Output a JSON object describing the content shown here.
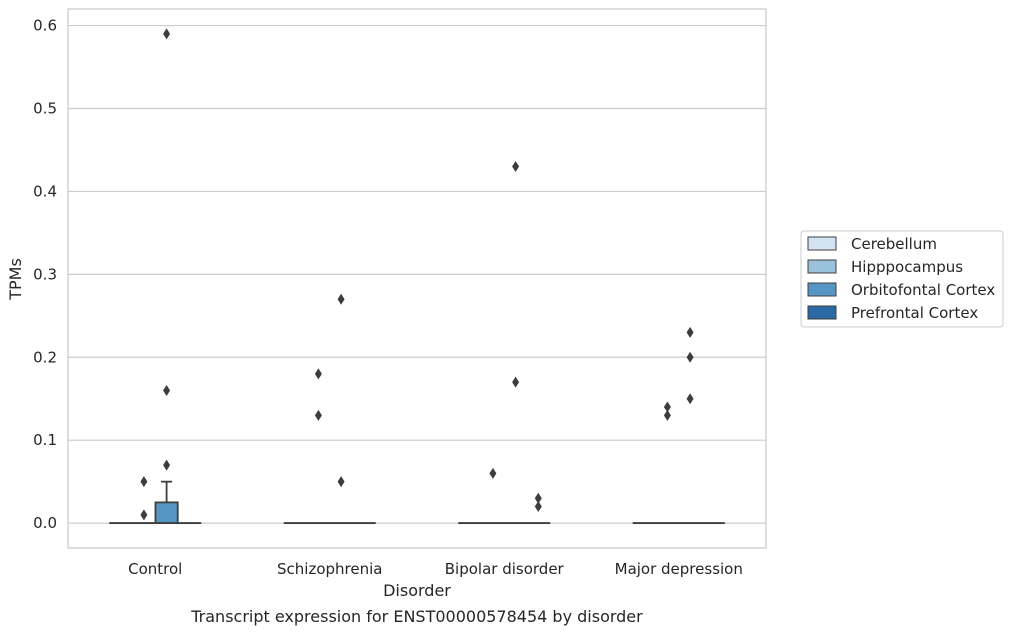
{
  "chart_data": {
    "type": "box",
    "title": "Transcript expression for ENST00000578454 by disorder",
    "xlabel": "Disorder",
    "ylabel": "TPMs",
    "ylim": [
      -0.03,
      0.62
    ],
    "yticks": [
      0.0,
      0.1,
      0.2,
      0.3,
      0.4,
      0.5,
      0.6
    ],
    "ytick_labels": [
      "0.0",
      "0.1",
      "0.2",
      "0.3",
      "0.4",
      "0.5",
      "0.6"
    ],
    "categories": [
      "Control",
      "Schizophrenia",
      "Bipolar disorder",
      "Major depression"
    ],
    "grid": "horizontal",
    "legend_position": "right",
    "series": [
      {
        "name": "Cerebellum",
        "color": "#d4e3f2",
        "boxes": [
          {
            "q1": 0,
            "median": 0,
            "q3": 0,
            "whisker_low": 0,
            "whisker_high": 0,
            "outliers": []
          },
          {
            "q1": 0,
            "median": 0,
            "q3": 0,
            "whisker_low": 0,
            "whisker_high": 0,
            "outliers": []
          },
          {
            "q1": 0,
            "median": 0,
            "q3": 0,
            "whisker_low": 0,
            "whisker_high": 0,
            "outliers": []
          },
          {
            "q1": 0,
            "median": 0,
            "q3": 0,
            "whisker_low": 0,
            "whisker_high": 0,
            "outliers": []
          }
        ]
      },
      {
        "name": "Hipppocampus",
        "color": "#9ac2dd",
        "boxes": [
          {
            "q1": 0,
            "median": 0,
            "q3": 0,
            "whisker_low": 0,
            "whisker_high": 0,
            "outliers": [
              0.01,
              0.05
            ]
          },
          {
            "q1": 0,
            "median": 0,
            "q3": 0,
            "whisker_low": 0,
            "whisker_high": 0,
            "outliers": [
              0.13,
              0.18
            ]
          },
          {
            "q1": 0,
            "median": 0,
            "q3": 0,
            "whisker_low": 0,
            "whisker_high": 0,
            "outliers": [
              0.06
            ]
          },
          {
            "q1": 0,
            "median": 0,
            "q3": 0,
            "whisker_low": 0,
            "whisker_high": 0,
            "outliers": [
              0.13,
              0.14
            ]
          }
        ]
      },
      {
        "name": "Orbitofontal Cortex",
        "color": "#5696c4",
        "boxes": [
          {
            "q1": 0,
            "median": 0,
            "q3": 0.025,
            "whisker_low": 0,
            "whisker_high": 0.05,
            "outliers": [
              0.07,
              0.16,
              0.59
            ]
          },
          {
            "q1": 0,
            "median": 0,
            "q3": 0,
            "whisker_low": 0,
            "whisker_high": 0,
            "outliers": [
              0.05,
              0.27
            ]
          },
          {
            "q1": 0,
            "median": 0,
            "q3": 0,
            "whisker_low": 0,
            "whisker_high": 0,
            "outliers": [
              0.17,
              0.43
            ]
          },
          {
            "q1": 0,
            "median": 0,
            "q3": 0,
            "whisker_low": 0,
            "whisker_high": 0,
            "outliers": [
              0.15,
              0.2,
              0.23
            ]
          }
        ]
      },
      {
        "name": "Prefrontal Cortex",
        "color": "#2b6aa6",
        "boxes": [
          {
            "q1": 0,
            "median": 0,
            "q3": 0,
            "whisker_low": 0,
            "whisker_high": 0,
            "outliers": []
          },
          {
            "q1": 0,
            "median": 0,
            "q3": 0,
            "whisker_low": 0,
            "whisker_high": 0,
            "outliers": []
          },
          {
            "q1": 0,
            "median": 0,
            "q3": 0,
            "whisker_low": 0,
            "whisker_high": 0,
            "outliers": [
              0.02,
              0.03
            ]
          },
          {
            "q1": 0,
            "median": 0,
            "q3": 0,
            "whisker_low": 0,
            "whisker_high": 0,
            "outliers": []
          }
        ]
      }
    ]
  }
}
